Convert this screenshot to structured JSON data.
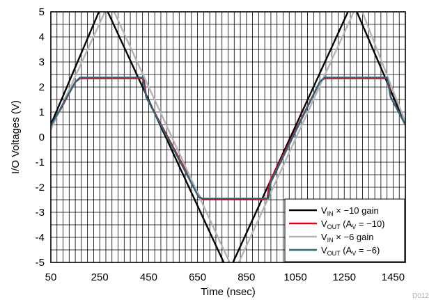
{
  "chart_data": {
    "type": "line",
    "xlabel": "Time (nsec)",
    "ylabel": "I/O Voltages (V)",
    "xlim": [
      50,
      1500
    ],
    "ylim": [
      -5,
      5
    ],
    "xticks": [
      50,
      250,
      450,
      650,
      850,
      1050,
      1250,
      1450
    ],
    "yticks": [
      -5,
      -4,
      -3,
      -2,
      -1,
      0,
      1,
      2,
      3,
      4,
      5
    ],
    "grid": true,
    "legend_position": "bottom-right",
    "watermark": "D012",
    "series": [
      {
        "name": "VIN × −10 gain",
        "label": {
          "main": "V",
          "sub": "IN",
          "rest": " × −10 gain"
        },
        "color": "#000000",
        "x": [
          50,
          264,
          776,
          1284,
          1500
        ],
        "y": [
          0.5,
          5.4,
          -5.4,
          5.4,
          0.5
        ]
      },
      {
        "name": "VOUT (AV = −10)",
        "label": {
          "main": "V",
          "sub": "OUT",
          "rest": " (A",
          "sub2": "V",
          "rest2": " = −10)"
        },
        "color": "#e0001b",
        "x": [
          50,
          150,
          170,
          430,
          440,
          660,
          670,
          935,
          945,
          1150,
          1170,
          1430,
          1440,
          1500
        ],
        "y": [
          0.4,
          2.2,
          2.35,
          2.35,
          1.6,
          -2.4,
          -2.48,
          -2.48,
          -1.8,
          2.2,
          2.35,
          2.35,
          1.6,
          0.5
        ]
      },
      {
        "name": "VIN × −6 gain",
        "label": {
          "main": "V",
          "sub": "IN",
          "rest": " × −6 gain"
        },
        "color": "#b4b4b4",
        "x": [
          50,
          290,
          800,
          1308,
          1500
        ],
        "y": [
          0.3,
          5.4,
          -5.4,
          5.4,
          0.6
        ]
      },
      {
        "name": "VOUT (AV = −6)",
        "label": {
          "main": "V",
          "sub": "OUT",
          "rest": " (A",
          "sub2": "V",
          "rest2": " = −6)"
        },
        "color": "#2f6678",
        "x": [
          50,
          150,
          170,
          425,
          440,
          655,
          670,
          940,
          950,
          1150,
          1170,
          1425,
          1440,
          1500
        ],
        "y": [
          0.45,
          2.2,
          2.38,
          2.38,
          1.6,
          -2.4,
          -2.45,
          -2.45,
          -1.8,
          2.2,
          2.38,
          2.38,
          1.6,
          0.5
        ]
      }
    ]
  }
}
